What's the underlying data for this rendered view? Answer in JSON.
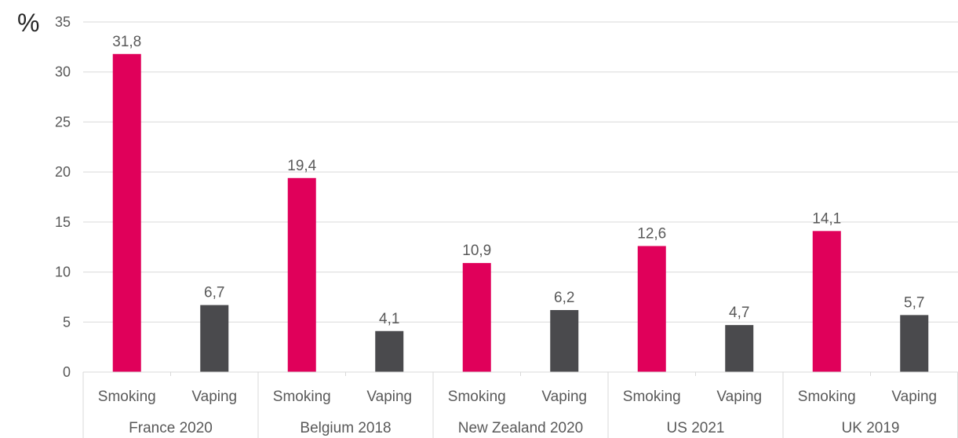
{
  "chart_data": {
    "type": "bar",
    "ylabel": "%",
    "ylim": [
      0,
      35
    ],
    "yticks": [
      0,
      5,
      10,
      15,
      20,
      25,
      30,
      35
    ],
    "grid": true,
    "groups": [
      {
        "label": "France 2020",
        "bars": [
          {
            "category": "Smoking",
            "value": 31.8,
            "label": "31,8"
          },
          {
            "category": "Vaping",
            "value": 6.7,
            "label": "6,7"
          }
        ]
      },
      {
        "label": "Belgium 2018",
        "bars": [
          {
            "category": "Smoking",
            "value": 19.4,
            "label": "19,4"
          },
          {
            "category": "Vaping",
            "value": 4.1,
            "label": "4,1"
          }
        ]
      },
      {
        "label": "New Zealand 2020",
        "bars": [
          {
            "category": "Smoking",
            "value": 10.9,
            "label": "10,9"
          },
          {
            "category": "Vaping",
            "value": 6.2,
            "label": "6,2"
          }
        ]
      },
      {
        "label": "US 2021",
        "bars": [
          {
            "category": "Smoking",
            "value": 12.6,
            "label": "12,6"
          },
          {
            "category": "Vaping",
            "value": 4.7,
            "label": "4,7"
          }
        ]
      },
      {
        "label": "UK 2019",
        "bars": [
          {
            "category": "Smoking",
            "value": 14.1,
            "label": "14,1"
          },
          {
            "category": "Vaping",
            "value": 5.7,
            "label": "5,7"
          }
        ]
      }
    ],
    "colors": {
      "Smoking": "#e0005a",
      "Vaping": "#4a4a4d"
    }
  }
}
